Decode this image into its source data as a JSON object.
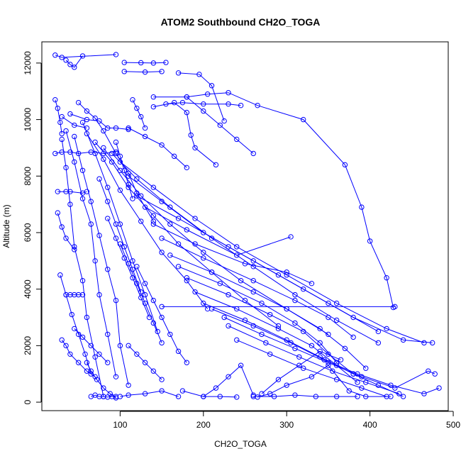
{
  "chart_data": {
    "type": "line",
    "title": "ATOM2 Southbound CH2O_TOGA",
    "xlabel": "CH2O_TOGA",
    "ylabel": "Altitude (m)",
    "xlim": [
      6,
      494
    ],
    "ylim": [
      -300,
      12750
    ],
    "xticks": [
      100,
      200,
      300,
      400,
      500
    ],
    "yticks": [
      0,
      2000,
      4000,
      6000,
      8000,
      10000,
      12000
    ],
    "grid": false,
    "color": "#0000ff",
    "markers": "open-circle",
    "series": [
      {
        "x": [
          22,
          30,
          95
        ],
        "y": [
          12280,
          12200,
          12300
        ]
      },
      {
        "x": [
          35,
          40,
          45,
          55
        ],
        "y": [
          12100,
          11950,
          11850,
          12250
        ]
      },
      {
        "x": [
          105,
          125,
          140,
          155
        ],
        "y": [
          12020,
          12010,
          12000,
          12020
        ]
      },
      {
        "x": [
          105,
          130,
          150
        ],
        "y": [
          11700,
          11680,
          11700
        ]
      },
      {
        "x": [
          170,
          195,
          210,
          225
        ],
        "y": [
          11650,
          11600,
          11200,
          9950
        ]
      },
      {
        "x": [
          155,
          175,
          200,
          230,
          245
        ],
        "y": [
          10550,
          10600,
          10550,
          10550,
          10500
        ]
      },
      {
        "x": [
          140,
          165,
          180,
          185,
          190,
          215
        ],
        "y": [
          10450,
          10600,
          10250,
          9450,
          9000,
          8400
        ]
      },
      {
        "x": [
          140,
          180,
          205,
          230,
          265,
          320,
          370,
          390,
          400,
          420,
          428
        ],
        "y": [
          10800,
          10800,
          10900,
          10950,
          10500,
          10000,
          8400,
          6900,
          5700,
          4400,
          3350
        ]
      },
      {
        "x": [
          22,
          25,
          28,
          30
        ],
        "y": [
          10700,
          10400,
          9900,
          9500
        ]
      },
      {
        "x": [
          30,
          45,
          60
        ],
        "y": [
          10100,
          9800,
          9700
        ]
      },
      {
        "x": [
          40,
          60,
          75,
          85,
          95,
          110
        ],
        "y": [
          10200,
          10000,
          9950,
          9700,
          9700,
          9650
        ]
      },
      {
        "x": [
          22,
          30,
          40,
          50,
          65,
          80,
          95
        ],
        "y": [
          8800,
          8850,
          8850,
          8800,
          8850,
          8800,
          8850
        ]
      },
      {
        "x": [
          50,
          60,
          70,
          80,
          95,
          110,
          120,
          140
        ],
        "y": [
          10600,
          10300,
          10050,
          9600,
          8800,
          8100,
          7400,
          6400
        ]
      },
      {
        "x": [
          25,
          35,
          40,
          55,
          60
        ],
        "y": [
          7450,
          7450,
          7450,
          7400,
          7450
        ]
      },
      {
        "x": [
          30,
          35,
          40,
          45,
          55,
          60,
          70,
          80
        ],
        "y": [
          9300,
          8300,
          7000,
          5500,
          4300,
          3000,
          1600,
          200
        ]
      },
      {
        "x": [
          35,
          45,
          55,
          65,
          70,
          75,
          85,
          95
        ],
        "y": [
          9600,
          8500,
          7200,
          6300,
          5000,
          3800,
          2400,
          900
        ]
      },
      {
        "x": [
          45,
          55,
          65,
          75,
          85,
          95,
          100,
          110
        ],
        "y": [
          9400,
          8200,
          7100,
          5900,
          4700,
          3600,
          2000,
          600
        ]
      },
      {
        "x": [
          55,
          70,
          85,
          100,
          115,
          130,
          145
        ],
        "y": [
          9900,
          8800,
          7600,
          6300,
          5000,
          3800,
          2500
        ]
      },
      {
        "x": [
          60,
          80,
          100,
          125,
          150,
          180,
          205
        ],
        "y": [
          9500,
          8600,
          7500,
          6400,
          5300,
          4300,
          3300
        ]
      },
      {
        "x": [
          70,
          90,
          110,
          140,
          170,
          210,
          250,
          290
        ],
        "y": [
          9200,
          8500,
          7600,
          6600,
          5600,
          4600,
          3600,
          2700
        ]
      },
      {
        "x": [
          80,
          100,
          125,
          160,
          200,
          245,
          300,
          350
        ],
        "y": [
          9000,
          8200,
          7300,
          6300,
          5300,
          4300,
          3300,
          2400
        ]
      },
      {
        "x": [
          90,
          120,
          160,
          210,
          260,
          310,
          360,
          410
        ],
        "y": [
          8800,
          7900,
          6900,
          5800,
          4800,
          3800,
          2900,
          2100
        ]
      },
      {
        "x": [
          100,
          140,
          190,
          240,
          300,
          360,
          420,
          465
        ],
        "y": [
          8500,
          7600,
          6500,
          5500,
          4500,
          3500,
          2600,
          2100
        ]
      },
      {
        "x": [
          110,
          150,
          200,
          260,
          320,
          380,
          440,
          475
        ],
        "y": [
          8000,
          7100,
          6000,
          5000,
          4000,
          3000,
          2200,
          2100
        ]
      },
      {
        "x": [
          120,
          170,
          230,
          290,
          350,
          410
        ],
        "y": [
          7300,
          6500,
          5500,
          4500,
          3500,
          2500
        ]
      },
      {
        "x": [
          130,
          180,
          240,
          305
        ],
        "y": [
          6900,
          6100,
          5200,
          5850
        ]
      },
      {
        "x": [
          140,
          190,
          250,
          300,
          330
        ],
        "y": [
          6300,
          5600,
          4900,
          4600,
          4200
        ]
      },
      {
        "x": [
          150,
          200,
          260,
          310,
          350,
          380
        ],
        "y": [
          5800,
          5100,
          4300,
          3600,
          3000,
          2300
        ]
      },
      {
        "x": [
          160,
          210,
          260,
          300,
          340,
          370,
          395
        ],
        "y": [
          5200,
          4600,
          3900,
          3300,
          2600,
          1900,
          1200
        ]
      },
      {
        "x": [
          170,
          220,
          270,
          310,
          340,
          360
        ],
        "y": [
          4800,
          4200,
          3500,
          2800,
          2100,
          1400
        ]
      },
      {
        "x": [
          180,
          230,
          280,
          320,
          350,
          380
        ],
        "y": [
          4400,
          3800,
          3100,
          2500,
          1700,
          1000
        ]
      },
      {
        "x": [
          190,
          240,
          290,
          330,
          360,
          385
        ],
        "y": [
          3900,
          3300,
          2600,
          2000,
          1300,
          700
        ]
      },
      {
        "x": [
          150,
          430
        ],
        "y": [
          3380,
          3380
        ]
      },
      {
        "x": [
          200,
          250,
          300,
          340,
          380,
          410,
          440
        ],
        "y": [
          3500,
          2900,
          2200,
          1600,
          1000,
          600,
          200
        ]
      },
      {
        "x": [
          210,
          260,
          305,
          345,
          385,
          425,
          465,
          483
        ],
        "y": [
          3300,
          2700,
          2100,
          1500,
          1000,
          600,
          300,
          500
        ]
      },
      {
        "x": [
          225,
          270,
          310,
          350,
          390,
          430,
          470,
          478
        ],
        "y": [
          3000,
          2400,
          1900,
          1400,
          900,
          500,
          1100,
          1000
        ]
      },
      {
        "x": [
          230,
          275,
          315,
          355,
          395,
          435
        ],
        "y": [
          2700,
          2100,
          1600,
          1100,
          700,
          300
        ]
      },
      {
        "x": [
          240,
          280,
          320,
          360,
          390,
          420
        ],
        "y": [
          2200,
          1700,
          1200,
          800,
          500,
          200
        ]
      },
      {
        "x": [
          260,
          285,
          310,
          335,
          360,
          385
        ],
        "y": [
          200,
          200,
          250,
          200,
          200,
          200
        ]
      },
      {
        "x": [
          265,
          280,
          300,
          330,
          350,
          375,
          395,
          425
        ],
        "y": [
          180,
          300,
          600,
          900,
          1300,
          400,
          200,
          200
        ]
      },
      {
        "x": [
          270,
          290,
          315,
          340,
          365
        ],
        "y": [
          300,
          800,
          1300,
          1800,
          1500
        ]
      },
      {
        "x": [
          200,
          215,
          230,
          245,
          260
        ],
        "y": [
          200,
          500,
          900,
          1300,
          250
        ]
      },
      {
        "x": [
          175,
          200,
          220,
          240
        ],
        "y": [
          400,
          200,
          200,
          180
        ]
      },
      {
        "x": [
          100,
          110,
          130,
          150,
          170
        ],
        "y": [
          200,
          250,
          300,
          400,
          200
        ]
      },
      {
        "x": [
          65,
          70,
          75,
          80,
          85,
          90,
          95
        ],
        "y": [
          200,
          250,
          200,
          200,
          180,
          200,
          200
        ]
      },
      {
        "x": [
          60,
          65,
          72,
          80,
          88,
          95
        ],
        "y": [
          1400,
          1100,
          800,
          500,
          300,
          150
        ]
      },
      {
        "x": [
          30,
          35,
          40,
          50,
          60,
          70
        ],
        "y": [
          2200,
          2000,
          1700,
          1400,
          1100,
          900
        ]
      },
      {
        "x": [
          28,
          35,
          42,
          50,
          58,
          65
        ],
        "y": [
          4500,
          3800,
          3100,
          2400,
          1700,
          1000
        ]
      },
      {
        "x": [
          35,
          40,
          45,
          50,
          55
        ],
        "y": [
          3800,
          3800,
          3800,
          3800,
          3800
        ]
      },
      {
        "x": [
          25,
          30,
          35,
          45
        ],
        "y": [
          6700,
          6200,
          5800,
          5400
        ]
      },
      {
        "x": [
          110,
          130,
          150,
          165,
          180
        ],
        "y": [
          9700,
          9400,
          9100,
          8700,
          8300
        ]
      },
      {
        "x": [
          115,
          120,
          125,
          130
        ],
        "y": [
          10700,
          10400,
          10100,
          9700
        ]
      },
      {
        "x": [
          95,
          100,
          105,
          110,
          115
        ],
        "y": [
          9200,
          8700,
          8200,
          7700,
          7200
        ]
      },
      {
        "x": [
          180,
          200,
          220,
          240,
          260
        ],
        "y": [
          10800,
          10300,
          9800,
          9300,
          8800
        ]
      },
      {
        "x": [
          75,
          85,
          95,
          105,
          115,
          125
        ],
        "y": [
          7900,
          7100,
          6300,
          5500,
          4700,
          3900
        ]
      },
      {
        "x": [
          85,
          95,
          105,
          115,
          125,
          135
        ],
        "y": [
          6500,
          5800,
          5100,
          4400,
          3700,
          3000
        ]
      },
      {
        "x": [
          100,
          110,
          120,
          130,
          140,
          150
        ],
        "y": [
          5600,
          4900,
          4200,
          3500,
          2800,
          2100
        ]
      },
      {
        "x": [
          120,
          130,
          140,
          150,
          160,
          170,
          180
        ],
        "y": [
          4800,
          4200,
          3600,
          3000,
          2400,
          1800,
          1400
        ]
      },
      {
        "x": [
          110,
          120,
          130,
          140,
          150
        ],
        "y": [
          2000,
          1700,
          1400,
          1100,
          800
        ]
      },
      {
        "x": [
          45,
          55,
          65,
          75,
          85
        ],
        "y": [
          2600,
          2300,
          2000,
          1700,
          1400
        ]
      }
    ]
  }
}
